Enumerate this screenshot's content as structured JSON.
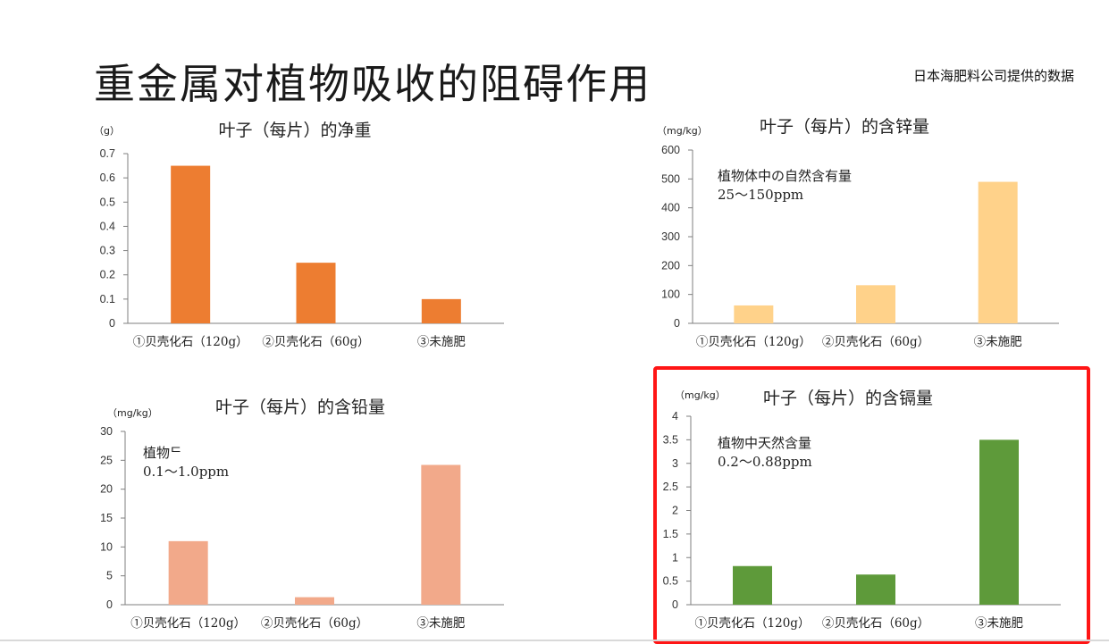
{
  "page": {
    "title": "重金属对植物吸收的阻碍作用",
    "source": "日本海肥料公司提供的数据"
  },
  "chart_data": [
    {
      "type": "bar",
      "title": "叶子（每片）的净重",
      "unit": "（g）",
      "categories": [
        "①贝壳化石（120g）",
        "②贝壳化石（60g）",
        "③未施肥"
      ],
      "values": [
        0.65,
        0.25,
        0.1
      ],
      "ylim": [
        0,
        0.7
      ],
      "yticks": [
        0,
        0.1,
        0.2,
        0.3,
        0.4,
        0.5,
        0.6,
        0.7
      ],
      "ytick_labels": [
        "0",
        "0.1",
        "0.2",
        "0.3",
        "0.4",
        "0.5",
        "0.6",
        "0.7"
      ],
      "color": "#ED7D31",
      "notes": []
    },
    {
      "type": "bar",
      "title": "叶子（每片）的含锌量",
      "unit": "（mg/kg）",
      "categories": [
        "①贝壳化石（120g）",
        "②贝壳化石（60g）",
        "③未施肥"
      ],
      "values": [
        62,
        132,
        490
      ],
      "ylim": [
        0,
        600
      ],
      "yticks": [
        0,
        100,
        200,
        300,
        400,
        500,
        600
      ],
      "ytick_labels": [
        "0",
        "100",
        "200",
        "300",
        "400",
        "500",
        "600"
      ],
      "color": "#FFD28A",
      "notes": [
        "植物体中の自然含有量",
        "25～150ppm"
      ]
    },
    {
      "type": "bar",
      "title": "叶子（每片）的含铅量",
      "unit": "（mg/kg）",
      "categories": [
        "①贝壳化石（120g）",
        "②贝壳化石（60g）",
        "③未施肥"
      ],
      "values": [
        11,
        1.3,
        24.2
      ],
      "ylim": [
        0,
        30
      ],
      "yticks": [
        0,
        5,
        10,
        15,
        20,
        25,
        30
      ],
      "ytick_labels": [
        "0",
        "5",
        "10",
        "15",
        "20",
        "25",
        "30"
      ],
      "color": "#F2A98A",
      "notes": [
        "植物ᄃ",
        "0.1～1.0ppm"
      ]
    },
    {
      "type": "bar",
      "title": "叶子（每片）的含镉量",
      "unit": "（mg/kg）",
      "categories": [
        "①贝壳化石（120g）",
        "②贝壳化石（60g）",
        "③未施肥"
      ],
      "values": [
        0.82,
        0.64,
        3.5
      ],
      "ylim": [
        0,
        4
      ],
      "yticks": [
        0,
        0.5,
        1,
        1.5,
        2,
        2.5,
        3,
        3.5,
        4
      ],
      "ytick_labels": [
        "0",
        "0.5",
        "1",
        "1.5",
        "2",
        "2.5",
        "3",
        "3.5",
        "4"
      ],
      "color": "#5E9A3A",
      "notes": [
        "植物中天然含量",
        "0.2～0.88ppm"
      ]
    }
  ],
  "highlight_color": "#FF1515"
}
